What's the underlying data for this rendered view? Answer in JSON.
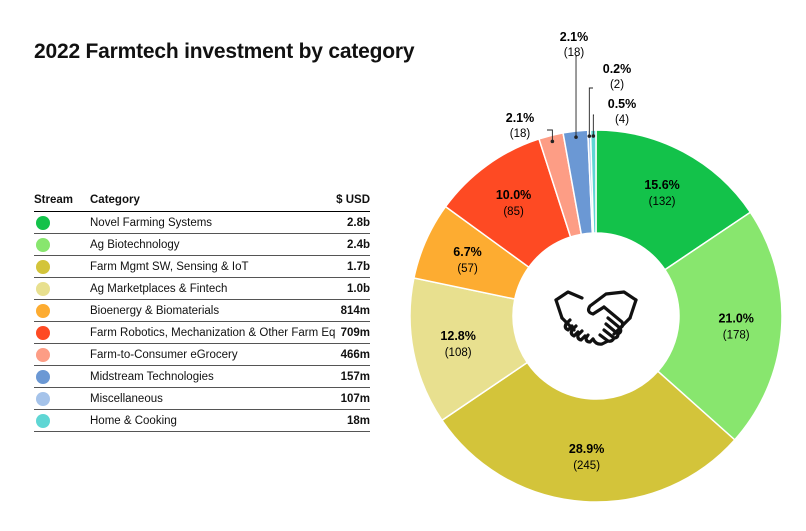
{
  "title": "2022 Farmtech investment by category",
  "table": {
    "headers": {
      "stream": "Stream",
      "category": "Category",
      "value": "$ USD"
    }
  },
  "chart_data": {
    "type": "pie",
    "title": "2022 Farmtech investment by category",
    "center_icon": "handshake-icon",
    "categories": [
      "Novel Farming Systems",
      "Ag Biotechnology",
      "Farm Mgmt SW, Sensing & IoT",
      "Ag Marketplaces & Fintech",
      "Bioenergy & Biomaterials",
      "Farm Robotics, Mechanization & Other Farm Eq",
      "Farm-to-Consumer eGrocery",
      "Midstream Technologies",
      "Miscellaneous",
      "Home & Cooking"
    ],
    "investment_usd": [
      "2.8b",
      "2.4b",
      "1.7b",
      "1.0b",
      "814m",
      "709m",
      "466m",
      "157m",
      "107m",
      "18m"
    ],
    "colors": [
      "#13c24a",
      "#88e66e",
      "#d3c43a",
      "#e8e08f",
      "#fdac31",
      "#fe4a23",
      "#fd9d85",
      "#6b98d4",
      "#a5c3ea",
      "#5fd6d4"
    ],
    "slices": [
      {
        "category": "Novel Farming Systems",
        "percent": 15.6,
        "count": 132,
        "pct_label": "15.6%",
        "count_label": "(132)"
      },
      {
        "category": "Ag Biotechnology",
        "percent": 21.0,
        "count": 178,
        "pct_label": "21.0%",
        "count_label": "(178)"
      },
      {
        "category": "Farm Mgmt SW, Sensing & IoT",
        "percent": 28.9,
        "count": 245,
        "pct_label": "28.9%",
        "count_label": "(245)"
      },
      {
        "category": "Ag Marketplaces & Fintech",
        "percent": 12.8,
        "count": 108,
        "pct_label": "12.8%",
        "count_label": "(108)"
      },
      {
        "category": "Bioenergy & Biomaterials",
        "percent": 6.7,
        "count": 57,
        "pct_label": "6.7%",
        "count_label": "(57)"
      },
      {
        "category": "Farm Robotics, Mechanization & Other Farm Eq",
        "percent": 10.0,
        "count": 85,
        "pct_label": "10.0%",
        "count_label": "(85)"
      },
      {
        "category": "Farm-to-Consumer eGrocery",
        "percent": 2.1,
        "count": 18,
        "pct_label": "2.1%",
        "count_label": "(18)"
      },
      {
        "category": "Midstream Technologies",
        "percent": 2.1,
        "count": 18,
        "pct_label": "2.1%",
        "count_label": "(18)"
      },
      {
        "category": "Miscellaneous",
        "percent": 0.2,
        "count": 2,
        "pct_label": "0.2%",
        "count_label": "(2)"
      },
      {
        "category": "Home & Cooking",
        "percent": 0.5,
        "count": 4,
        "pct_label": "0.5%",
        "count_label": "(4)"
      }
    ]
  }
}
